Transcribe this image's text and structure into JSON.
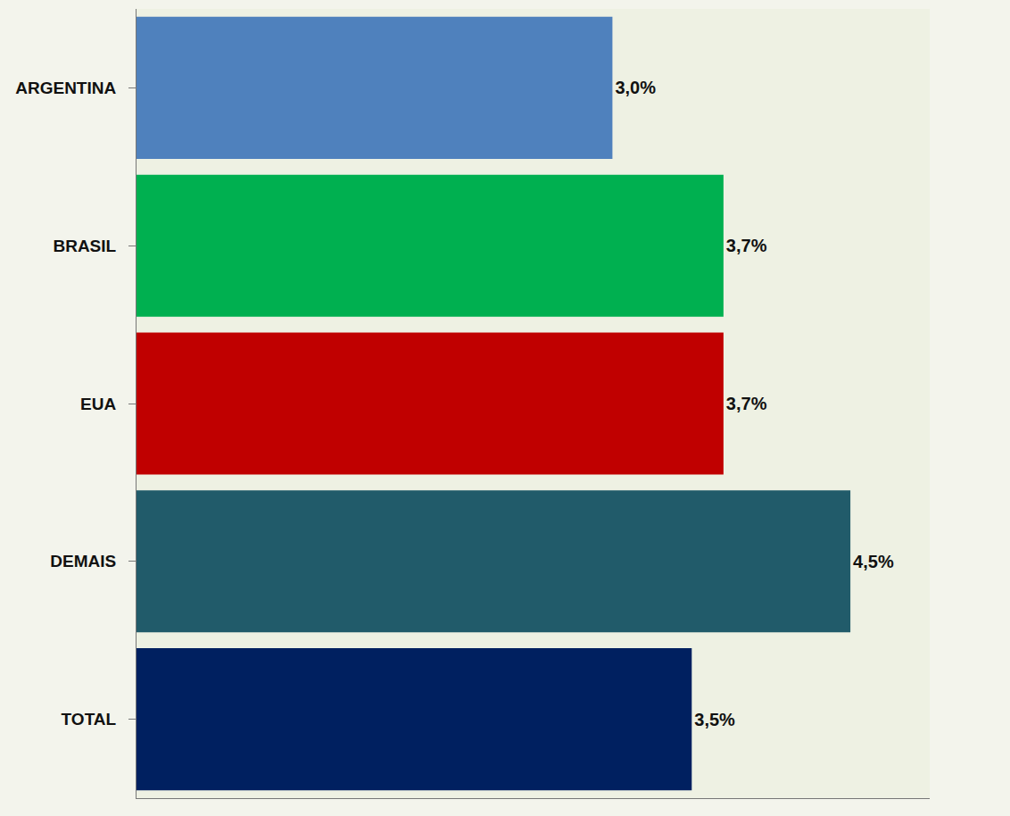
{
  "chart_data": {
    "type": "bar",
    "orientation": "horizontal",
    "categories": [
      "ARGENTINA",
      "BRASIL",
      "EUA",
      "DEMAIS",
      "TOTAL"
    ],
    "values": [
      3.0,
      3.7,
      3.7,
      4.5,
      3.5
    ],
    "value_labels": [
      "3,0%",
      "3,7%",
      "3,7%",
      "4,5%",
      "3,5%"
    ],
    "colors": [
      "#4f81bd",
      "#00b050",
      "#c00000",
      "#215b6a",
      "#002060"
    ],
    "data_labels": true,
    "tick_labels": "y",
    "grid": false,
    "xlim": [
      0,
      5
    ],
    "xticks": []
  }
}
